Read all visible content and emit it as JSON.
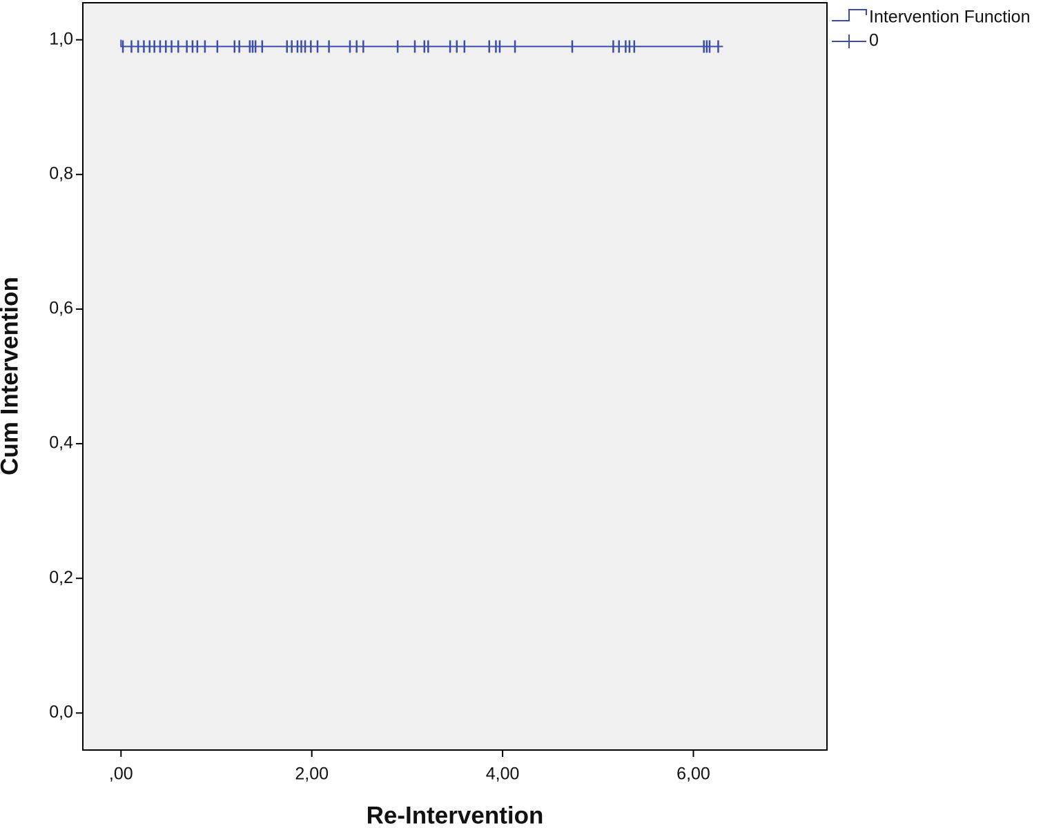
{
  "chart_data": {
    "type": "line",
    "x_label": "Re-Intervention",
    "y_label": "Cum Intervention",
    "legend_title": "Intervention Function",
    "legend_position": "outside-top-right",
    "xlim": [
      -0.4,
      7.4
    ],
    "ylim": [
      -0.055,
      1.055
    ],
    "xticks": [
      {
        "value": 0,
        "label": ",00"
      },
      {
        "value": 2,
        "label": "2,00"
      },
      {
        "value": 4,
        "label": "4,00"
      },
      {
        "value": 6,
        "label": "6,00"
      }
    ],
    "yticks": [
      {
        "value": 0,
        "label": "0,0"
      },
      {
        "value": 0.2,
        "label": "0,2"
      },
      {
        "value": 0.4,
        "label": "0,4"
      },
      {
        "value": 0.6,
        "label": "0,6"
      },
      {
        "value": 0.8,
        "label": "0,8"
      },
      {
        "value": 1.0,
        "label": "1,0"
      }
    ],
    "series": [
      {
        "name": "0",
        "color": "#3a4ea8",
        "x": [
          0,
          0,
          6.31
        ],
        "values": [
          1.0,
          0.99,
          0.99
        ],
        "censored_x": [
          0.02,
          0.11,
          0.18,
          0.24,
          0.3,
          0.35,
          0.41,
          0.47,
          0.53,
          0.6,
          0.69,
          0.75,
          0.8,
          0.88,
          1.01,
          1.19,
          1.24,
          1.35,
          1.38,
          1.41,
          1.48,
          1.74,
          1.79,
          1.85,
          1.89,
          1.93,
          1.99,
          2.06,
          2.18,
          2.4,
          2.47,
          2.54,
          2.9,
          3.08,
          3.18,
          3.22,
          3.45,
          3.52,
          3.6,
          3.86,
          3.93,
          3.97,
          4.13,
          4.73,
          5.16,
          5.22,
          5.29,
          5.33,
          5.38,
          6.11,
          6.14,
          6.17,
          6.26
        ],
        "censored_values": [
          0.99,
          0.99,
          0.99,
          0.99,
          0.99,
          0.99,
          0.99,
          0.99,
          0.99,
          0.99,
          0.99,
          0.99,
          0.99,
          0.99,
          0.99,
          0.99,
          0.99,
          0.99,
          0.99,
          0.99,
          0.99,
          0.99,
          0.99,
          0.99,
          0.99,
          0.99,
          0.99,
          0.99,
          0.99,
          0.99,
          0.99,
          0.99,
          0.99,
          0.99,
          0.99,
          0.99,
          0.99,
          0.99,
          0.99,
          0.99,
          0.99,
          0.99,
          0.99,
          0.99,
          0.99,
          0.99,
          0.99,
          0.99,
          0.99,
          0.99,
          0.99,
          0.99,
          0.99
        ]
      }
    ]
  }
}
